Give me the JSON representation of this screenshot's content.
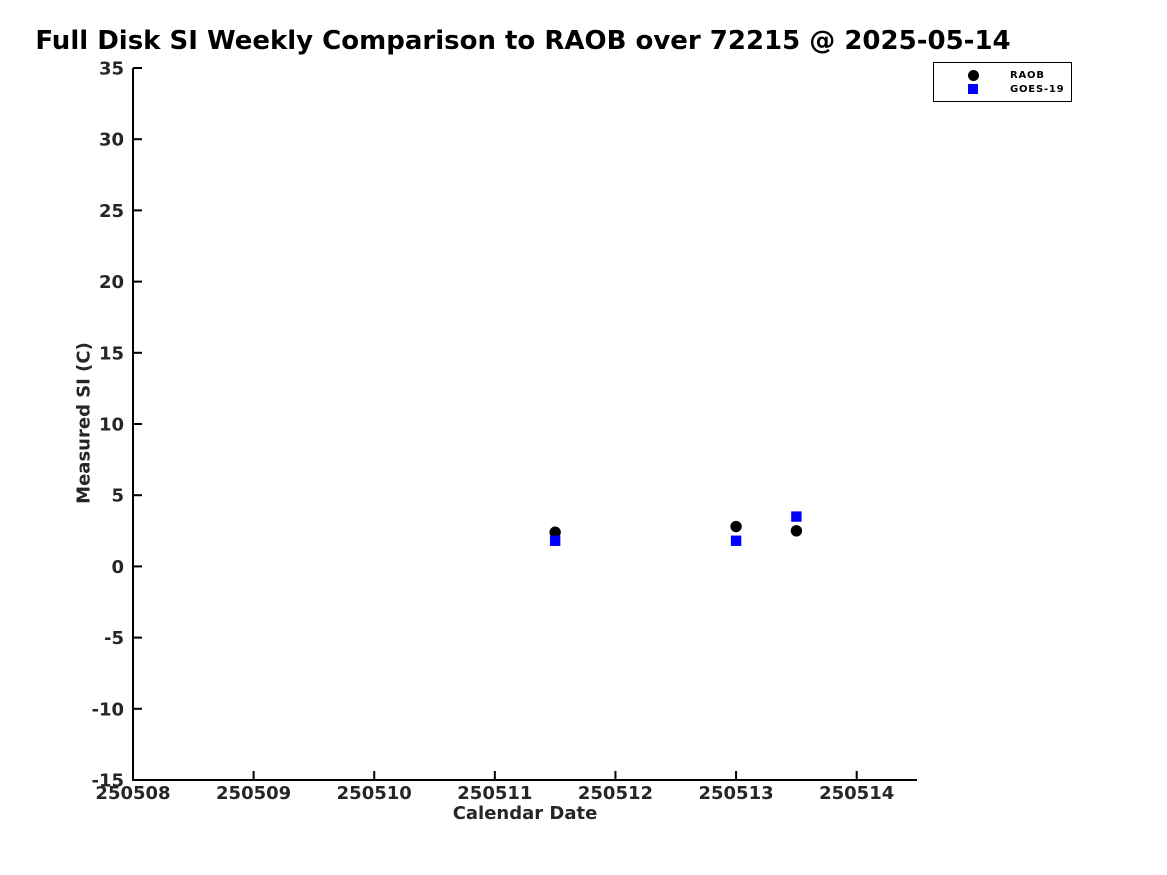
{
  "chart_data": {
    "type": "scatter",
    "title": "Full Disk SI Weekly Comparison to RAOB over 72215 @ 2025-05-14",
    "xlabel": "Calendar Date",
    "ylabel": "Measured SI (C)",
    "xlim": [
      250508,
      250514.5
    ],
    "ylim": [
      -15,
      35
    ],
    "xticks": [
      250508,
      250509,
      250510,
      250511,
      250512,
      250513,
      250514
    ],
    "yticks": [
      35,
      30,
      25,
      20,
      15,
      10,
      5,
      0,
      -5,
      -10,
      -15
    ],
    "grid": false,
    "axis_color": "#000000",
    "tick_label_color": "#262626",
    "legend_position": "outside-top-right",
    "series": [
      {
        "name": "RAOB",
        "marker": "circle",
        "color": "#000000",
        "points": [
          {
            "x": 250511.5,
            "y": 2.4
          },
          {
            "x": 250513.0,
            "y": 2.8
          },
          {
            "x": 250513.5,
            "y": 2.5
          }
        ]
      },
      {
        "name": "GOES-19",
        "marker": "square",
        "color": "#0000ff",
        "points": [
          {
            "x": 250511.5,
            "y": 1.8
          },
          {
            "x": 250513.0,
            "y": 1.8
          },
          {
            "x": 250513.5,
            "y": 3.5
          }
        ]
      }
    ]
  }
}
